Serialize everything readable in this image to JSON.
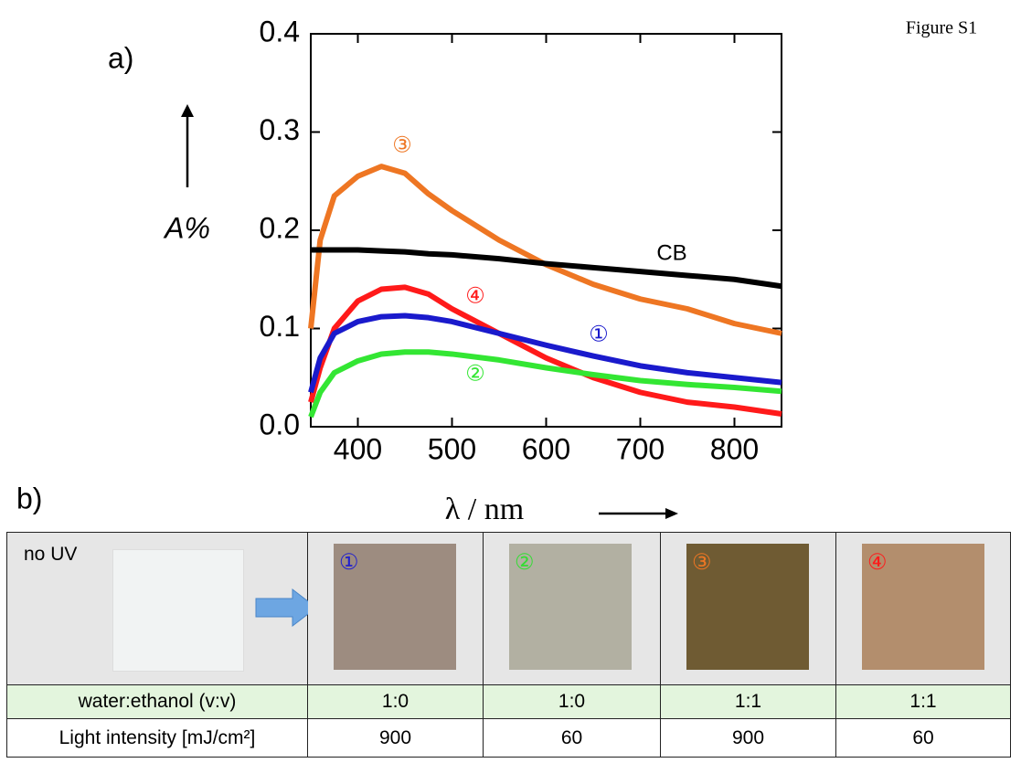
{
  "figure_label": "Figure S1",
  "panel_a": "a)",
  "panel_b": "b)",
  "chart_data": {
    "type": "line",
    "y_label": "A%",
    "x_label": "λ / nm",
    "x": [
      350,
      360,
      375,
      400,
      425,
      450,
      475,
      500,
      550,
      600,
      650,
      700,
      750,
      800,
      850
    ],
    "series": [
      {
        "name": "③",
        "color": "#ee7623",
        "values": [
          0.1,
          0.19,
          0.235,
          0.255,
          0.265,
          0.258,
          0.237,
          0.22,
          0.19,
          0.165,
          0.145,
          0.13,
          0.12,
          0.105,
          0.095
        ]
      },
      {
        "name": "CB",
        "color": "#000000",
        "values": [
          0.18,
          0.18,
          0.18,
          0.18,
          0.179,
          0.178,
          0.176,
          0.175,
          0.171,
          0.166,
          0.162,
          0.158,
          0.154,
          0.15,
          0.143
        ]
      },
      {
        "name": "④",
        "color": "#ff1a1a",
        "values": [
          0.025,
          0.06,
          0.1,
          0.128,
          0.14,
          0.142,
          0.135,
          0.12,
          0.095,
          0.07,
          0.05,
          0.035,
          0.025,
          0.02,
          0.013
        ]
      },
      {
        "name": "①",
        "color": "#1a1acc",
        "values": [
          0.035,
          0.07,
          0.095,
          0.107,
          0.112,
          0.113,
          0.111,
          0.107,
          0.095,
          0.083,
          0.072,
          0.062,
          0.055,
          0.05,
          0.045
        ]
      },
      {
        "name": "②",
        "color": "#33e633",
        "values": [
          0.01,
          0.035,
          0.055,
          0.067,
          0.074,
          0.076,
          0.076,
          0.074,
          0.068,
          0.06,
          0.053,
          0.047,
          0.043,
          0.04,
          0.036
        ]
      }
    ],
    "xlim": [
      350,
      850
    ],
    "xticks": [
      400,
      500,
      600,
      700,
      800
    ],
    "ylim": [
      0,
      0.4
    ],
    "yticks": [
      {
        "value": 0,
        "label": "0.0"
      },
      0.1,
      0.2,
      0.3,
      0.4
    ]
  },
  "table": {
    "top": {
      "label": "no UV",
      "samples": [
        "①",
        "②",
        "③",
        "④"
      ]
    },
    "rows": [
      [
        "water:ethanol (v:v)",
        "1:0",
        "1:0",
        "1:1",
        "1:1"
      ],
      [
        "Light intensity [mJ/cm²]",
        "900",
        "60",
        "900",
        "60"
      ]
    ]
  }
}
